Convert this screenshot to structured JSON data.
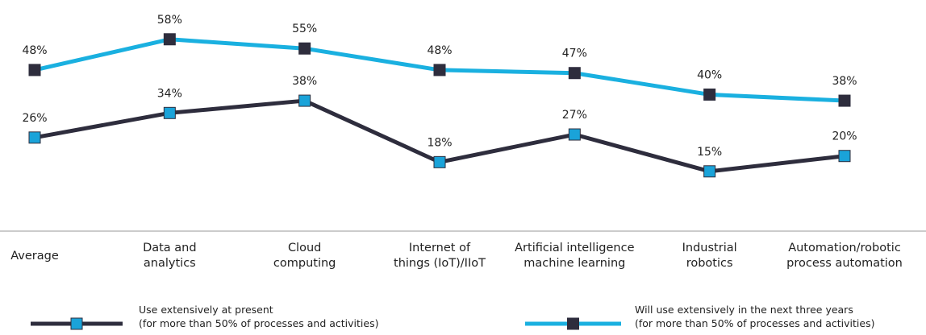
{
  "chart_data": {
    "type": "line",
    "categories": [
      "Average",
      "Data and\nanalytics",
      "Cloud\ncomputing",
      "Internet of\nthings (IoT)/IIoT",
      "Artificial intelligence\nmachine learning",
      "Industrial\nrobotics",
      "Automation/robotic\nprocess automation"
    ],
    "series": [
      {
        "name": "Use extensively at present\n(for more than 50% of processes and activities)",
        "color": "#2e2d3d",
        "marker_color": "#1aa3d9",
        "values": [
          26,
          34,
          38,
          18,
          27,
          15,
          20
        ],
        "value_labels": [
          "26%",
          "34%",
          "38%",
          "18%",
          "27%",
          "15%",
          "20%"
        ]
      },
      {
        "name": "Will use extensively in the next three years\n(for more than 50% of processes and activities)",
        "color": "#1ab0e0",
        "marker_color": "#2e2d3d",
        "values": [
          48,
          58,
          55,
          48,
          47,
          40,
          38
        ],
        "value_labels": [
          "48%",
          "58%",
          "55%",
          "48%",
          "47%",
          "40%",
          "38%"
        ]
      }
    ],
    "ylim": [
      0,
      70
    ]
  }
}
